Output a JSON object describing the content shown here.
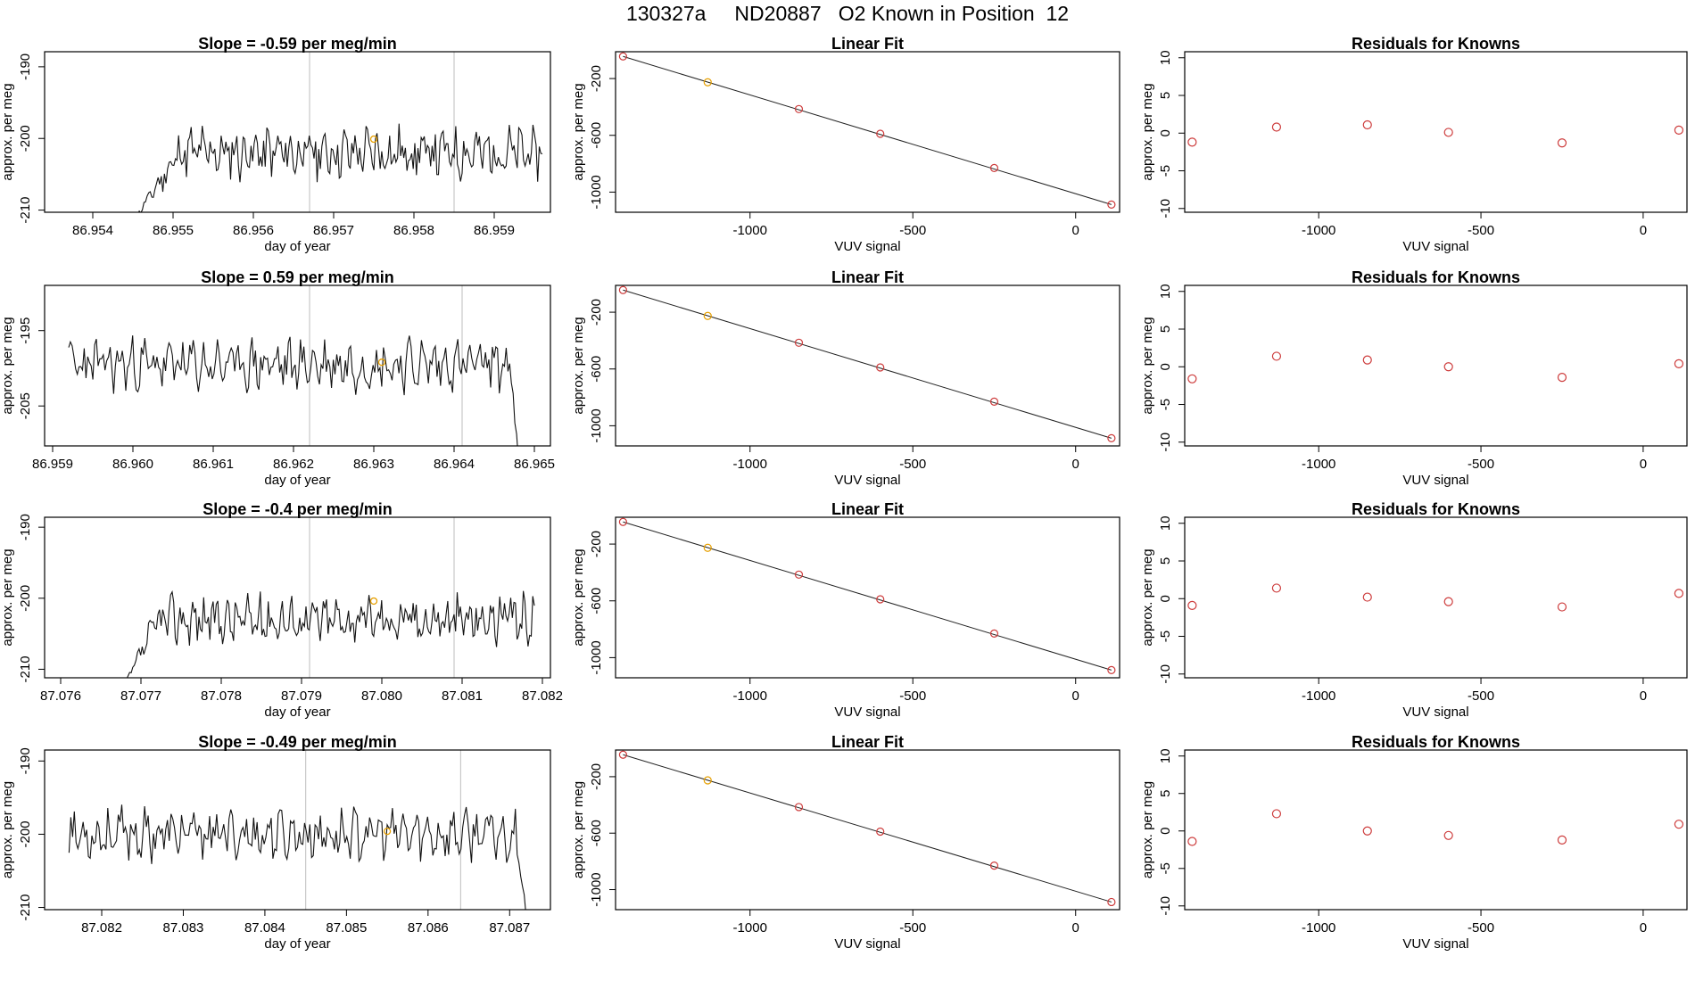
{
  "figure": {
    "title": "130327a     ND20887   O2 Known in Position  12"
  },
  "chart_data": [
    {
      "type": "line",
      "panel": "time-series",
      "row": 1,
      "title": "Slope =  -0.59  per meg/min",
      "xlabel": "day of year",
      "ylabel": "approx. per meg",
      "xlim": [
        86.9534,
        86.9597
      ],
      "ylim": [
        -210.3,
        -187.9
      ],
      "xticks": [
        86.954,
        86.955,
        86.956,
        86.957,
        86.958,
        86.959
      ],
      "xtick_labels": [
        "86.954",
        "86.955",
        "86.956",
        "86.957",
        "86.958",
        "86.959"
      ],
      "yticks": [
        -210,
        -200,
        -190
      ],
      "ytick_labels": [
        "-210",
        "-200",
        "-190"
      ],
      "start": 86.9545,
      "end": 86.9596,
      "start_y": -211.5,
      "rise_end": 86.9552,
      "level": -202,
      "trend": 0.0032,
      "amp": 2.8,
      "seed": 11,
      "vlines": [
        86.9567,
        86.9585
      ],
      "marker": {
        "x": 86.9575,
        "y": -200.1,
        "color": "#e69f00"
      }
    },
    {
      "type": "line",
      "panel": "linear-fit",
      "row": 1,
      "title": "Linear Fit",
      "xlabel": "VUV signal",
      "ylabel": "approx. per meg",
      "xlim": [
        -1413,
        135
      ],
      "ylim": [
        -1142,
        -11
      ],
      "xticks": [
        -1000,
        -500,
        0
      ],
      "xtick_labels": [
        "-1000",
        "-500",
        "0"
      ],
      "yticks": [
        -1000,
        -600,
        -200
      ],
      "ytick_labels": [
        "-1000",
        "-600",
        "-200"
      ],
      "line_x": [
        -1390,
        110
      ],
      "line_y": [
        -44,
        -1088
      ],
      "points": [
        {
          "x": -1390,
          "y": -44,
          "color": "#cd3b3b"
        },
        {
          "x": -1130,
          "y": -226,
          "color": "#e69f00"
        },
        {
          "x": -850,
          "y": -415,
          "color": "#cd3b3b"
        },
        {
          "x": -600,
          "y": -589,
          "color": "#cd3b3b"
        },
        {
          "x": -250,
          "y": -830,
          "color": "#cd3b3b"
        },
        {
          "x": 110,
          "y": -1088,
          "color": "#cd3b3b"
        }
      ]
    },
    {
      "type": "scatter",
      "panel": "residuals",
      "row": 1,
      "title": "Residuals for Knowns",
      "xlabel": "VUV signal",
      "ylabel": "approx. per meg",
      "xlim": [
        -1413,
        135
      ],
      "ylim": [
        -10.5,
        10.8
      ],
      "xticks": [
        -1000,
        -500,
        0
      ],
      "xtick_labels": [
        "-1000",
        "-500",
        "0"
      ],
      "yticks": [
        -10,
        -5,
        0,
        5,
        10
      ],
      "ytick_labels": [
        "-10",
        "-5",
        "0",
        "5",
        "10"
      ],
      "points": [
        {
          "x": -1390,
          "y": -1.2
        },
        {
          "x": -1130,
          "y": 0.8
        },
        {
          "x": -850,
          "y": 1.1
        },
        {
          "x": -600,
          "y": 0.1
        },
        {
          "x": -250,
          "y": -1.3
        },
        {
          "x": 110,
          "y": 0.4
        }
      ]
    },
    {
      "type": "line",
      "panel": "time-series",
      "row": 2,
      "title": "Slope =  0.59  per meg/min",
      "xlabel": "day of year",
      "ylabel": "approx. per meg",
      "xlim": [
        86.9589,
        86.9652
      ],
      "ylim": [
        -210.3,
        -189.0
      ],
      "xticks": [
        86.959,
        86.96,
        86.961,
        86.962,
        86.963,
        86.964,
        86.965
      ],
      "xtick_labels": [
        "86.959",
        "86.960",
        "86.961",
        "86.962",
        "86.963",
        "86.964",
        "86.965"
      ],
      "yticks": [
        -205,
        -195
      ],
      "ytick_labels": [
        "-205",
        "-195"
      ],
      "start": 86.9592,
      "end": 86.9648,
      "start_y": -200,
      "rise_end": 86.9592,
      "level": -199.5,
      "trend": -0.002,
      "amp": 2.6,
      "seed": 23,
      "fall_start": 86.9647,
      "fall_end": 86.9648,
      "fall_y": -212,
      "vlines": [
        86.9622,
        86.9641
      ],
      "marker": {
        "x": 86.9631,
        "y": -199.2,
        "color": "#e69f00"
      }
    },
    {
      "type": "line",
      "panel": "linear-fit",
      "row": 2,
      "title": "Linear Fit",
      "xlabel": "VUV signal",
      "ylabel": "approx. per meg",
      "xlim": [
        -1413,
        135
      ],
      "ylim": [
        -1142,
        -11
      ],
      "xticks": [
        -1000,
        -500,
        0
      ],
      "xtick_labels": [
        "-1000",
        "-500",
        "0"
      ],
      "yticks": [
        -1000,
        -600,
        -200
      ],
      "ytick_labels": [
        "-1000",
        "-600",
        "-200"
      ],
      "line_x": [
        -1390,
        110
      ],
      "line_y": [
        -44,
        -1088
      ],
      "points": [
        {
          "x": -1390,
          "y": -44,
          "color": "#cd3b3b"
        },
        {
          "x": -1130,
          "y": -226,
          "color": "#e69f00"
        },
        {
          "x": -850,
          "y": -415,
          "color": "#cd3b3b"
        },
        {
          "x": -600,
          "y": -589,
          "color": "#cd3b3b"
        },
        {
          "x": -250,
          "y": -830,
          "color": "#cd3b3b"
        },
        {
          "x": 110,
          "y": -1088,
          "color": "#cd3b3b"
        }
      ]
    },
    {
      "type": "scatter",
      "panel": "residuals",
      "row": 2,
      "title": "Residuals for Knowns",
      "xlabel": "VUV signal",
      "ylabel": "approx. per meg",
      "xlim": [
        -1413,
        135
      ],
      "ylim": [
        -10.5,
        10.8
      ],
      "xticks": [
        -1000,
        -500,
        0
      ],
      "xtick_labels": [
        "-1000",
        "-500",
        "0"
      ],
      "yticks": [
        -10,
        -5,
        0,
        5,
        10
      ],
      "ytick_labels": [
        "-10",
        "-5",
        "0",
        "5",
        "10"
      ],
      "points": [
        {
          "x": -1390,
          "y": -1.6
        },
        {
          "x": -1130,
          "y": 1.4
        },
        {
          "x": -850,
          "y": 0.9
        },
        {
          "x": -600,
          "y": 0.0
        },
        {
          "x": -250,
          "y": -1.4
        },
        {
          "x": 110,
          "y": 0.4
        }
      ]
    },
    {
      "type": "line",
      "panel": "time-series",
      "row": 3,
      "title": "Slope =  -0.4  per meg/min",
      "xlabel": "day of year",
      "ylabel": "approx. per meg",
      "xlim": [
        87.0758,
        87.0821
      ],
      "ylim": [
        -211.2,
        -188.6
      ],
      "xticks": [
        87.076,
        87.077,
        87.078,
        87.079,
        87.08,
        87.081,
        87.082
      ],
      "xtick_labels": [
        "87.076",
        "87.077",
        "87.078",
        "87.079",
        "87.080",
        "87.081",
        "87.082"
      ],
      "yticks": [
        -210,
        -200,
        -190
      ],
      "ytick_labels": [
        "-210",
        "-200",
        "-190"
      ],
      "start": 87.0768,
      "end": 87.0819,
      "start_y": -212,
      "rise_end": 87.0773,
      "level": -203,
      "trend": 0.003,
      "amp": 2.6,
      "seed": 37,
      "vlines": [
        87.0791,
        87.0809
      ],
      "marker": {
        "x": 87.0799,
        "y": -200.4,
        "color": "#e69f00"
      }
    },
    {
      "type": "line",
      "panel": "linear-fit",
      "row": 3,
      "title": "Linear Fit",
      "xlabel": "VUV signal",
      "ylabel": "approx. per meg",
      "xlim": [
        -1413,
        135
      ],
      "ylim": [
        -1142,
        -11
      ],
      "xticks": [
        -1000,
        -500,
        0
      ],
      "xtick_labels": [
        "-1000",
        "-500",
        "0"
      ],
      "yticks": [
        -1000,
        -600,
        -200
      ],
      "ytick_labels": [
        "-1000",
        "-600",
        "-200"
      ],
      "line_x": [
        -1390,
        110
      ],
      "line_y": [
        -44,
        -1088
      ],
      "points": [
        {
          "x": -1390,
          "y": -44,
          "color": "#cd3b3b"
        },
        {
          "x": -1130,
          "y": -226,
          "color": "#e69f00"
        },
        {
          "x": -850,
          "y": -415,
          "color": "#cd3b3b"
        },
        {
          "x": -600,
          "y": -589,
          "color": "#cd3b3b"
        },
        {
          "x": -250,
          "y": -830,
          "color": "#cd3b3b"
        },
        {
          "x": 110,
          "y": -1088,
          "color": "#cd3b3b"
        }
      ]
    },
    {
      "type": "scatter",
      "panel": "residuals",
      "row": 3,
      "title": "Residuals for Knowns",
      "xlabel": "VUV signal",
      "ylabel": "approx. per meg",
      "xlim": [
        -1413,
        135
      ],
      "ylim": [
        -10.5,
        10.8
      ],
      "xticks": [
        -1000,
        -500,
        0
      ],
      "xtick_labels": [
        "-1000",
        "-500",
        "0"
      ],
      "yticks": [
        -10,
        -5,
        0,
        5,
        10
      ],
      "ytick_labels": [
        "-10",
        "-5",
        "0",
        "5",
        "10"
      ],
      "points": [
        {
          "x": -1390,
          "y": -0.9
        },
        {
          "x": -1130,
          "y": 1.4
        },
        {
          "x": -850,
          "y": 0.2
        },
        {
          "x": -600,
          "y": -0.4
        },
        {
          "x": -250,
          "y": -1.1
        },
        {
          "x": 110,
          "y": 0.7
        }
      ]
    },
    {
      "type": "line",
      "panel": "time-series",
      "row": 4,
      "title": "Slope =  -0.49  per meg/min",
      "xlabel": "day of year",
      "ylabel": "approx. per meg",
      "xlim": [
        87.0813,
        87.0875
      ],
      "ylim": [
        -210.3,
        -188.5
      ],
      "xticks": [
        87.082,
        87.083,
        87.084,
        87.085,
        87.086,
        87.087
      ],
      "xtick_labels": [
        "87.082",
        "87.083",
        "87.084",
        "87.085",
        "87.086",
        "87.087"
      ],
      "yticks": [
        -210,
        -200,
        -190
      ],
      "ytick_labels": [
        "-210",
        "-200",
        "-190"
      ],
      "start": 87.0816,
      "end": 87.0872,
      "start_y": -199,
      "rise_end": 87.0816,
      "level": -200,
      "trend": 0.0,
      "amp": 2.6,
      "seed": 53,
      "fall_start": 87.0871,
      "fall_end": 87.0872,
      "fall_y": -211,
      "vlines": [
        87.0845,
        87.0864
      ],
      "marker": {
        "x": 87.0855,
        "y": -199.6,
        "color": "#e69f00"
      }
    },
    {
      "type": "line",
      "panel": "linear-fit",
      "row": 4,
      "title": "Linear Fit",
      "xlabel": "VUV signal",
      "ylabel": "approx. per meg",
      "xlim": [
        -1413,
        135
      ],
      "ylim": [
        -1142,
        -11
      ],
      "xticks": [
        -1000,
        -500,
        0
      ],
      "xtick_labels": [
        "-1000",
        "-500",
        "0"
      ],
      "yticks": [
        -1000,
        -600,
        -200
      ],
      "ytick_labels": [
        "-1000",
        "-600",
        "-200"
      ],
      "line_x": [
        -1390,
        110
      ],
      "line_y": [
        -44,
        -1088
      ],
      "points": [
        {
          "x": -1390,
          "y": -44,
          "color": "#cd3b3b"
        },
        {
          "x": -1130,
          "y": -226,
          "color": "#e69f00"
        },
        {
          "x": -850,
          "y": -415,
          "color": "#cd3b3b"
        },
        {
          "x": -600,
          "y": -589,
          "color": "#cd3b3b"
        },
        {
          "x": -250,
          "y": -830,
          "color": "#cd3b3b"
        },
        {
          "x": 110,
          "y": -1088,
          "color": "#cd3b3b"
        }
      ]
    },
    {
      "type": "scatter",
      "panel": "residuals",
      "row": 4,
      "title": "Residuals for Knowns",
      "xlabel": "VUV signal",
      "ylabel": "approx. per meg",
      "xlim": [
        -1413,
        135
      ],
      "ylim": [
        -10.5,
        10.8
      ],
      "xticks": [
        -1000,
        -500,
        0
      ],
      "xtick_labels": [
        "-1000",
        "-500",
        "0"
      ],
      "yticks": [
        -10,
        -5,
        0,
        5,
        10
      ],
      "ytick_labels": [
        "-10",
        "-5",
        "0",
        "5",
        "10"
      ],
      "points": [
        {
          "x": -1390,
          "y": -1.4
        },
        {
          "x": -1130,
          "y": 2.3
        },
        {
          "x": -850,
          "y": 0.0
        },
        {
          "x": -600,
          "y": -0.6
        },
        {
          "x": -250,
          "y": -1.2
        },
        {
          "x": 110,
          "y": 0.9
        }
      ]
    }
  ]
}
